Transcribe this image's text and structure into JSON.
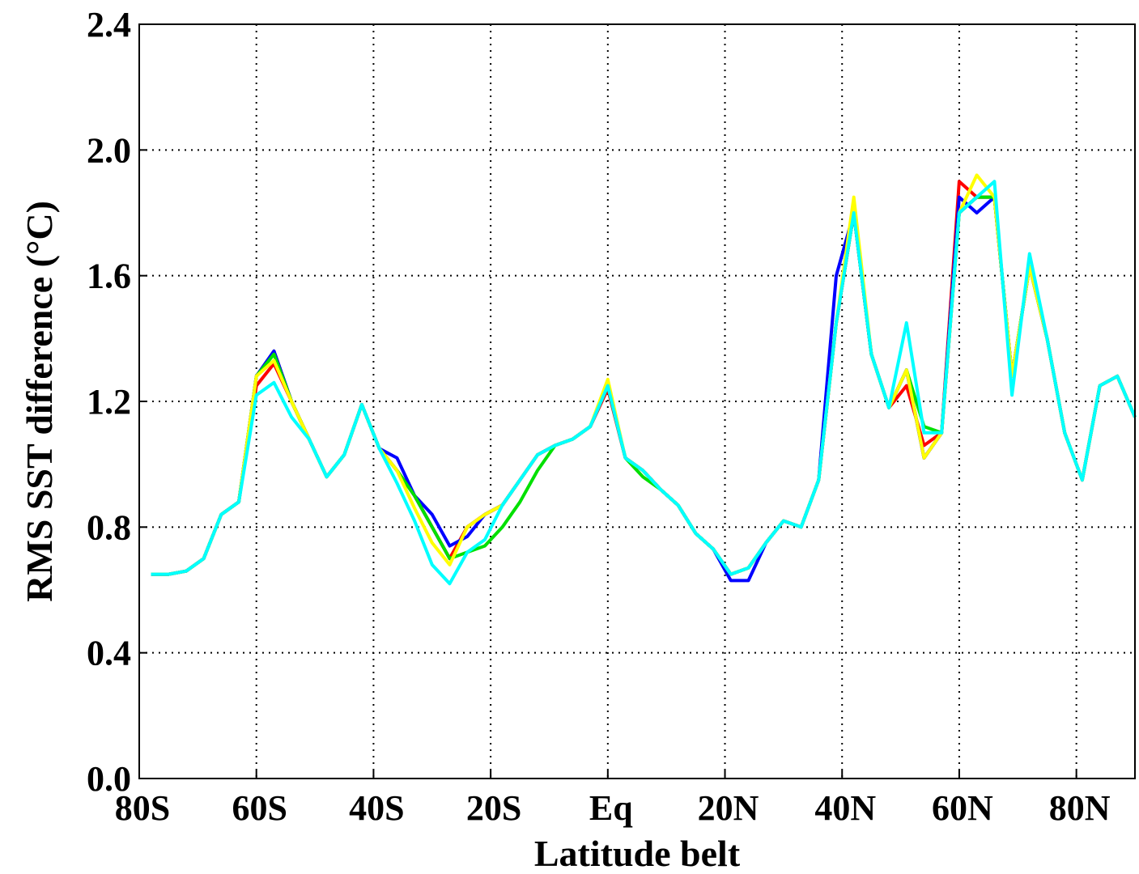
{
  "chart_data": {
    "type": "line",
    "xlabel": "Latitude belt",
    "ylabel": "RMS SST difference (°C)",
    "x": [
      -78,
      -75,
      -72,
      -69,
      -66,
      -63,
      -60,
      -57,
      -54,
      -51,
      -48,
      -45,
      -42,
      -39,
      -36,
      -33,
      -30,
      -27,
      -24,
      -21,
      -18,
      -15,
      -12,
      -9,
      -6,
      -3,
      0,
      3,
      6,
      9,
      12,
      15,
      18,
      21,
      24,
      27,
      30,
      33,
      36,
      39,
      42,
      45,
      48,
      51,
      54,
      57,
      60,
      63,
      66,
      69,
      72,
      75,
      78,
      81,
      84,
      87,
      90
    ],
    "xlim": [
      -80,
      90
    ],
    "xticks": [
      {
        "value": -80,
        "label": "80S"
      },
      {
        "value": -60,
        "label": "60S"
      },
      {
        "value": -40,
        "label": "40S"
      },
      {
        "value": -20,
        "label": "20S"
      },
      {
        "value": 0,
        "label": "Eq"
      },
      {
        "value": 20,
        "label": "20N"
      },
      {
        "value": 40,
        "label": "40N"
      },
      {
        "value": 60,
        "label": "60N"
      },
      {
        "value": 80,
        "label": "80N"
      }
    ],
    "ylim": [
      0,
      2.4
    ],
    "yticks": [
      {
        "value": 0,
        "label": "0.0"
      },
      0.4,
      0.8,
      1.2,
      1.6,
      {
        "value": 2,
        "label": "2.0"
      },
      2.4
    ],
    "grid": true,
    "series": [
      {
        "color": "#000000",
        "values": [
          0.65,
          0.65,
          0.66,
          0.7,
          0.84,
          0.88,
          1.28,
          1.36,
          1.2,
          1.08,
          0.96,
          1.03,
          1.19,
          1.05,
          0.98,
          0.9,
          0.8,
          0.7,
          0.8,
          0.84,
          0.87,
          0.95,
          1.03,
          1.06,
          1.08,
          1.12,
          1.25,
          1.02,
          0.98,
          0.92,
          0.87,
          0.78,
          0.73,
          0.65,
          0.67,
          0.75,
          0.82,
          0.8,
          0.95,
          1.45,
          1.8,
          1.35,
          1.18,
          1.3,
          1.02,
          1.1,
          1.8,
          1.85,
          1.85,
          1.28,
          1.63,
          1.4,
          1.1,
          0.95,
          1.25,
          1.28,
          1.15
        ]
      },
      {
        "color": "#ff0000",
        "values": [
          0.65,
          0.65,
          0.66,
          0.7,
          0.84,
          0.88,
          1.25,
          1.32,
          1.2,
          1.08,
          0.96,
          1.03,
          1.19,
          1.05,
          0.98,
          0.9,
          0.8,
          0.7,
          0.8,
          0.84,
          0.87,
          0.95,
          1.03,
          1.06,
          1.08,
          1.12,
          1.24,
          1.02,
          0.98,
          0.92,
          0.87,
          0.78,
          0.73,
          0.65,
          0.67,
          0.75,
          0.82,
          0.8,
          0.95,
          1.45,
          1.8,
          1.35,
          1.18,
          1.25,
          1.06,
          1.1,
          1.9,
          1.85,
          1.85,
          1.28,
          1.63,
          1.4,
          1.1,
          0.95,
          1.25,
          1.28,
          1.15
        ]
      },
      {
        "color": "#0000ff",
        "values": [
          0.65,
          0.65,
          0.66,
          0.7,
          0.84,
          0.88,
          1.28,
          1.36,
          1.2,
          1.08,
          0.96,
          1.03,
          1.19,
          1.05,
          1.02,
          0.9,
          0.84,
          0.74,
          0.77,
          0.84,
          0.87,
          0.95,
          1.03,
          1.06,
          1.08,
          1.12,
          1.25,
          1.02,
          0.98,
          0.92,
          0.87,
          0.78,
          0.73,
          0.63,
          0.63,
          0.75,
          0.82,
          0.8,
          0.95,
          1.6,
          1.8,
          1.35,
          1.18,
          1.3,
          1.02,
          1.1,
          1.85,
          1.8,
          1.85,
          1.28,
          1.63,
          1.4,
          1.1,
          0.95,
          1.25,
          1.28,
          1.15
        ]
      },
      {
        "color": "#00e000",
        "values": [
          0.65,
          0.65,
          0.66,
          0.7,
          0.84,
          0.88,
          1.28,
          1.35,
          1.2,
          1.08,
          0.96,
          1.03,
          1.19,
          1.05,
          0.98,
          0.9,
          0.8,
          0.7,
          0.72,
          0.74,
          0.8,
          0.88,
          0.98,
          1.06,
          1.08,
          1.12,
          1.25,
          1.02,
          0.96,
          0.92,
          0.87,
          0.78,
          0.73,
          0.65,
          0.67,
          0.75,
          0.82,
          0.8,
          0.95,
          1.45,
          1.8,
          1.35,
          1.18,
          1.3,
          1.12,
          1.1,
          1.8,
          1.85,
          1.85,
          1.28,
          1.63,
          1.4,
          1.1,
          0.95,
          1.25,
          1.28,
          1.15
        ]
      },
      {
        "color": "#ffff00",
        "values": [
          0.65,
          0.65,
          0.66,
          0.7,
          0.84,
          0.88,
          1.28,
          1.33,
          1.2,
          1.08,
          0.96,
          1.03,
          1.19,
          1.05,
          0.98,
          0.86,
          0.75,
          0.68,
          0.8,
          0.84,
          0.87,
          0.95,
          1.03,
          1.06,
          1.08,
          1.12,
          1.27,
          1.02,
          0.98,
          0.92,
          0.87,
          0.78,
          0.73,
          0.65,
          0.67,
          0.75,
          0.82,
          0.8,
          0.95,
          1.45,
          1.85,
          1.35,
          1.18,
          1.3,
          1.02,
          1.1,
          1.8,
          1.92,
          1.85,
          1.28,
          1.63,
          1.4,
          1.1,
          0.95,
          1.25,
          1.28,
          1.15
        ]
      },
      {
        "color": "#00ffff",
        "values": [
          0.65,
          0.65,
          0.66,
          0.7,
          0.84,
          0.88,
          1.22,
          1.26,
          1.15,
          1.08,
          0.96,
          1.03,
          1.19,
          1.05,
          0.94,
          0.82,
          0.68,
          0.62,
          0.72,
          0.76,
          0.87,
          0.95,
          1.03,
          1.06,
          1.08,
          1.12,
          1.25,
          1.02,
          0.98,
          0.92,
          0.87,
          0.78,
          0.73,
          0.65,
          0.67,
          0.75,
          0.82,
          0.8,
          0.95,
          1.45,
          1.8,
          1.35,
          1.18,
          1.45,
          1.1,
          1.1,
          1.8,
          1.85,
          1.9,
          1.22,
          1.67,
          1.4,
          1.1,
          0.95,
          1.25,
          1.28,
          1.15
        ]
      }
    ]
  }
}
